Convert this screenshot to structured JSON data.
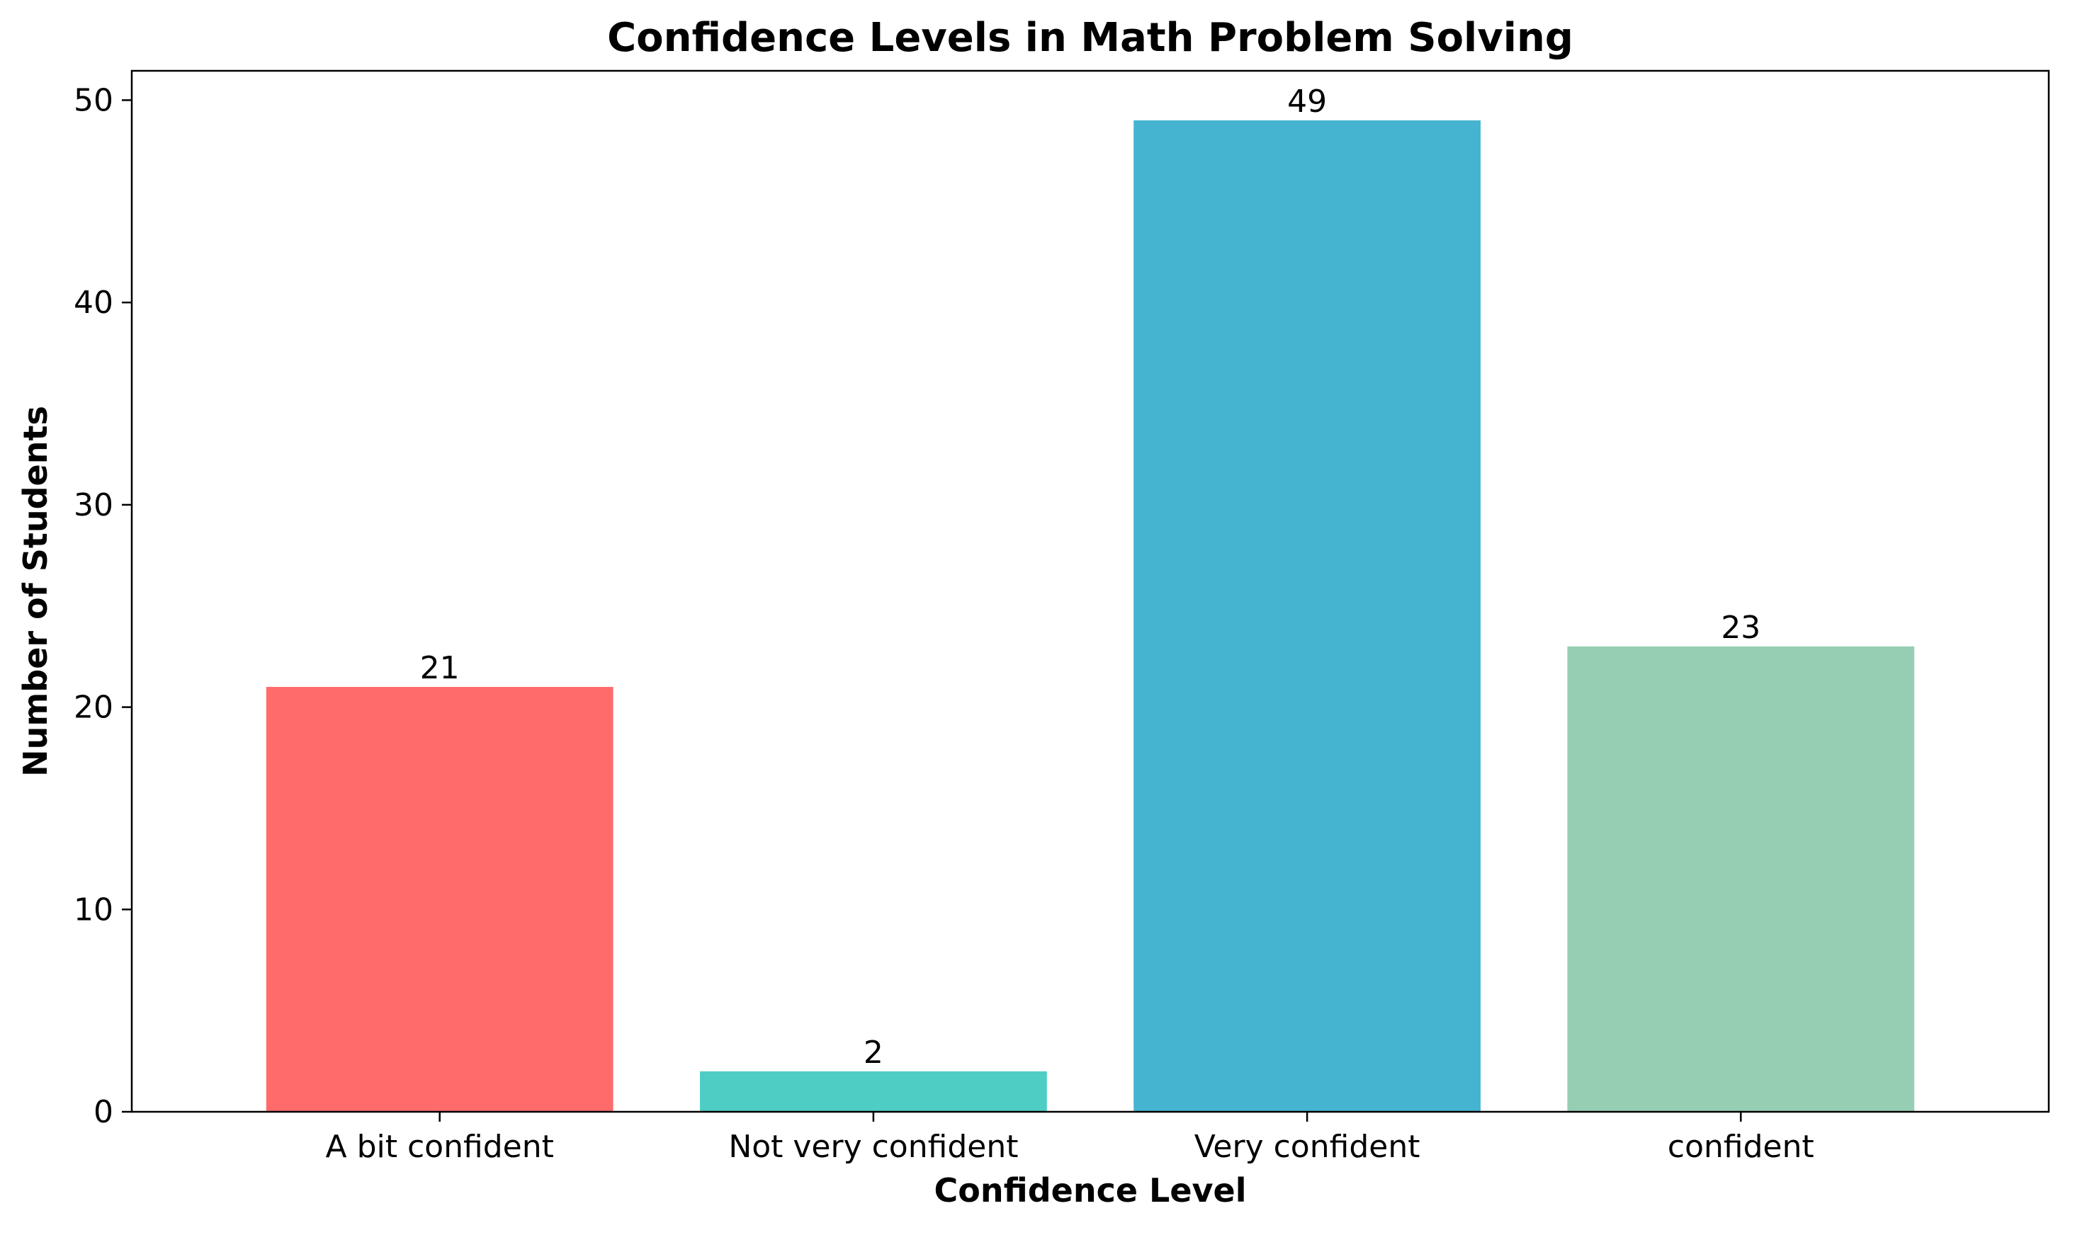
{
  "chart_data": {
    "type": "bar",
    "title": "Confidence Levels in Math Problem Solving",
    "xlabel": "Confidence Level",
    "ylabel": "Number of Students",
    "categories": [
      "A bit confident",
      "Not very confident",
      "Very confident",
      "confident"
    ],
    "values": [
      21,
      2,
      49,
      23
    ],
    "data_labels": [
      "21",
      "2",
      "49",
      "23"
    ],
    "colors": [
      "#FF6B6B",
      "#4ECDC4",
      "#45B4D0",
      "#96CEB4"
    ],
    "ylim": [
      0,
      51.45
    ],
    "yticks": [
      0,
      10,
      20,
      30,
      40,
      50
    ],
    "ytick_labels": [
      "0",
      "10",
      "20",
      "30",
      "40",
      "50"
    ],
    "grid": false,
    "legend": "none"
  }
}
